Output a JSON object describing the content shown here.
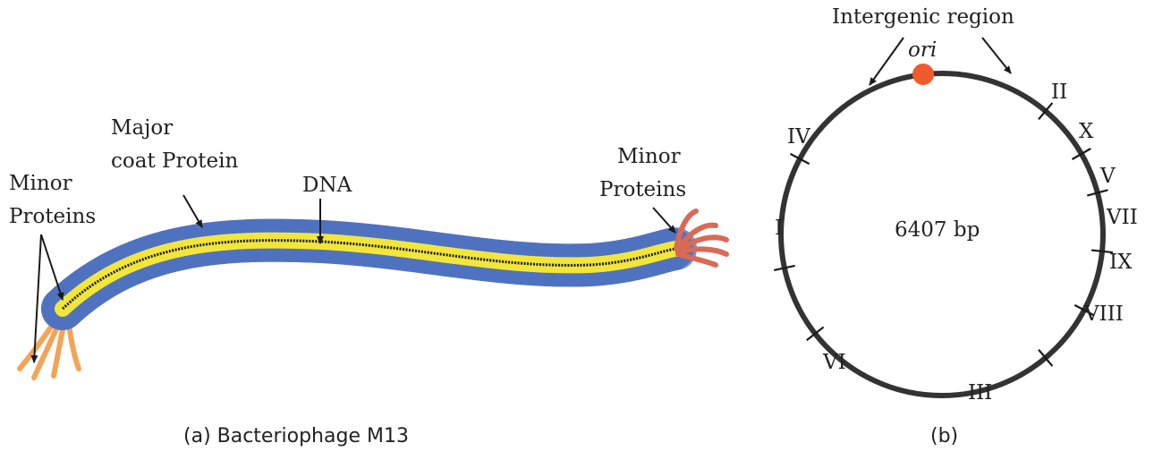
{
  "panel_a": {
    "labels": {
      "minor_proteins_left": [
        "Minor",
        "Proteins"
      ],
      "major_coat_protein": [
        "Major",
        "coat Protein"
      ],
      "dna": "DNA",
      "minor_proteins_right": [
        "Minor",
        "Proteins"
      ]
    },
    "caption": "(a)   Bacteriophage M13",
    "colors": {
      "coat": "#6f93d6",
      "coat_edge": "#4f72c0",
      "core": "#f3e63a",
      "dna_strand": "#1a1a1a",
      "tail_fibers_left": "#f2a457",
      "tail_fibers_right": "#d96a55"
    }
  },
  "panel_b": {
    "intergenic_label": "Intergenic region",
    "ori_label": "ori",
    "genome_size": "6407 bp",
    "genes": [
      "II",
      "X",
      "V",
      "VII",
      "IX",
      "VIII",
      "III",
      "VI",
      "I",
      "IV"
    ],
    "caption": "(b)",
    "colors": {
      "circle": "#333333",
      "ori_dot": "#ef5b2c"
    }
  }
}
